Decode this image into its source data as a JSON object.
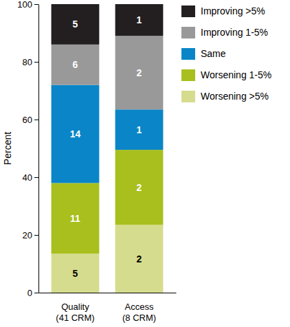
{
  "chart_data": {
    "type": "bar",
    "stacked": true,
    "y_label": "Percent",
    "categories": [
      "Quality (41 CRM)",
      "Access (8 CRM)"
    ],
    "ylim": [
      0,
      100
    ],
    "yticks": [
      0,
      20,
      40,
      60,
      80,
      100
    ],
    "series": [
      {
        "name": "Worsening >5%",
        "color": "#d6dc8d",
        "values": [
          13.5,
          23.5
        ],
        "counts": [
          5,
          2
        ]
      },
      {
        "name": "Worsening 1-5%",
        "color": "#a8bf1e",
        "values": [
          24.5,
          26
        ],
        "counts": [
          11,
          2
        ]
      },
      {
        "name": "Same",
        "color": "#0a86c8",
        "values": [
          34,
          14
        ],
        "counts": [
          14,
          1
        ]
      },
      {
        "name": "Improving 1-5%",
        "color": "#999999",
        "values": [
          14,
          25.5
        ],
        "counts": [
          6,
          2
        ]
      },
      {
        "name": "Improving >5%",
        "color": "#231f20",
        "values": [
          14,
          11
        ],
        "counts": [
          5,
          1
        ]
      }
    ]
  }
}
